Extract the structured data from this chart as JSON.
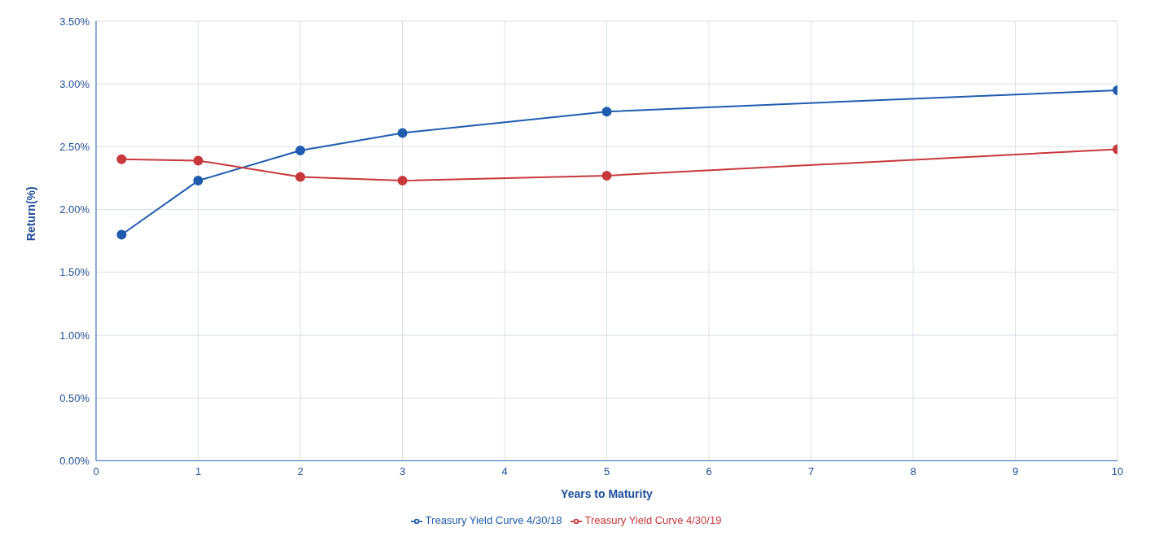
{
  "chart_data": {
    "type": "line",
    "xlabel": "Years to Maturity",
    "ylabel": "Return(%)",
    "x": [
      0.25,
      1,
      2,
      3,
      5,
      10
    ],
    "series": [
      {
        "name": "Treasury Yield Curve 4/30/18",
        "color": "#1f5cb0",
        "values": [
          1.8,
          2.23,
          2.47,
          2.61,
          2.78,
          2.95
        ]
      },
      {
        "name": "Treasury Yield Curve 4/30/19",
        "color": "#c8383a",
        "values": [
          2.4,
          2.39,
          2.26,
          2.23,
          2.27,
          2.48
        ]
      }
    ],
    "xlim": [
      0,
      10
    ],
    "xticks": [
      0,
      1,
      2,
      3,
      4,
      5,
      6,
      7,
      8,
      9,
      10
    ],
    "ylim": [
      0,
      3.5
    ],
    "yticks": [
      {
        "value": 0,
        "label": "0.00%"
      },
      {
        "value": 0.5,
        "label": "0.50%"
      },
      {
        "value": 1,
        "label": "1.00%"
      },
      {
        "value": 1.5,
        "label": "1.50%"
      },
      {
        "value": 2,
        "label": "2.00%"
      },
      {
        "value": 2.5,
        "label": "2.50%"
      },
      {
        "value": 3,
        "label": "3.00%"
      },
      {
        "value": 3.5,
        "label": "3.50%"
      }
    ],
    "grid": true,
    "legend": "bottom",
    "marker": "circle",
    "line_style": "solid"
  }
}
